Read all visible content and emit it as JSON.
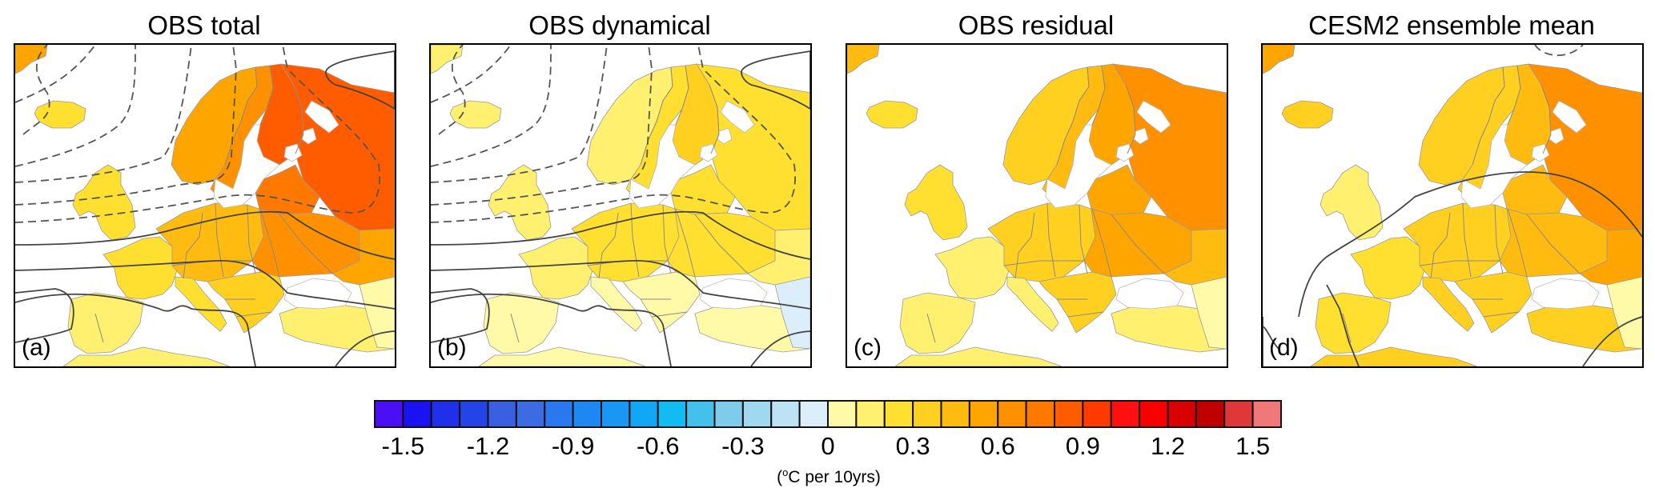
{
  "chart_data": {
    "type": "heatmap",
    "title": "",
    "description": "Four map panels of Europe showing temperature trends with overlaid contour lines (solid = positive, dashed = negative)",
    "panels": [
      {
        "id": "a",
        "title": "OBS total",
        "label": "(a)",
        "region_values": {
          "iceland": 0.2,
          "scandinavia_west": 0.5,
          "scandinavia_east": 0.6,
          "finland": 0.8,
          "russia_northwest": 0.8,
          "baltic_states": 0.7,
          "british_isles": 0.2,
          "france": 0.2,
          "iberia": 0.1,
          "central_europe": 0.4,
          "eastern_europe": 0.6,
          "italy": 0.2,
          "balkans": 0.3,
          "turkey": 0.1,
          "north_africa": 0.1,
          "russia_south": 0.5,
          "greenland_tip": 0.5
        },
        "contours": "dashed (negative) over North Atlantic/Scandinavia, solid (positive) over central/southern Europe"
      },
      {
        "id": "b",
        "title": "OBS dynamical",
        "label": "(b)",
        "region_values": {
          "iceland": 0.1,
          "scandinavia_west": 0.1,
          "scandinavia_east": 0.2,
          "finland": 0.3,
          "russia_northwest": 0.2,
          "baltic_states": 0.2,
          "british_isles": 0.1,
          "france": 0.1,
          "iberia": 0.05,
          "central_europe": 0.2,
          "eastern_europe": 0.2,
          "italy": 0.05,
          "balkans": 0.05,
          "turkey": 0.05,
          "north_africa": 0.05,
          "russia_south": 0.1,
          "caucasus": -0.1,
          "greenland_tip": 0.1
        },
        "contours": "same contour field as (a)"
      },
      {
        "id": "c",
        "title": "OBS residual",
        "label": "(c)",
        "region_values": {
          "iceland": 0.2,
          "scandinavia_west": 0.3,
          "scandinavia_east": 0.4,
          "finland": 0.5,
          "russia_northwest": 0.6,
          "baltic_states": 0.5,
          "british_isles": 0.2,
          "france": 0.15,
          "iberia": 0.15,
          "central_europe": 0.3,
          "eastern_europe": 0.5,
          "italy": 0.15,
          "balkans": 0.3,
          "turkey": 0.1,
          "north_africa": 0.15,
          "russia_south": 0.4,
          "greenland_tip": 0.4
        },
        "contours": "none"
      },
      {
        "id": "d",
        "title": "CESM2 ensemble mean",
        "label": "(d)",
        "region_values": {
          "iceland": 0.35,
          "scandinavia_west": 0.3,
          "scandinavia_east": 0.35,
          "finland": 0.45,
          "russia_northwest": 0.6,
          "baltic_states": 0.45,
          "british_isles": 0.15,
          "france": 0.25,
          "iberia": 0.2,
          "central_europe": 0.3,
          "eastern_europe": 0.45,
          "italy": 0.3,
          "balkans": 0.3,
          "turkey": 0.3,
          "north_africa": 0.3,
          "russia_south": 0.5,
          "greenland_tip": 0.5
        },
        "contours": "single solid contour arcing over western/central Europe"
      }
    ],
    "colorbar": {
      "levels": [
        -1.5,
        -1.4,
        -1.3,
        -1.2,
        -1.1,
        -1.0,
        -0.9,
        -0.8,
        -0.7,
        -0.6,
        -0.5,
        -0.4,
        -0.3,
        -0.2,
        -0.1,
        0,
        0.1,
        0.2,
        0.3,
        0.4,
        0.5,
        0.6,
        0.7,
        0.8,
        0.9,
        1.0,
        1.1,
        1.2,
        1.3,
        1.4,
        1.5
      ],
      "colors": [
        "#4b0ff5",
        "#1a12f0",
        "#2030ea",
        "#2444e8",
        "#3a5fe2",
        "#3d6be4",
        "#2a78f0",
        "#1e88f2",
        "#1a96f4",
        "#10a8f6",
        "#12bcf2",
        "#44c0ec",
        "#7ecbea",
        "#a0d8f0",
        "#bde2f4",
        "#dceefa",
        "#fffaa8",
        "#fff070",
        "#ffe030",
        "#ffd020",
        "#ffbb10",
        "#ffa500",
        "#ff9000",
        "#ff7800",
        "#ff5c00",
        "#ff3a00",
        "#ff1010",
        "#f80000",
        "#d80000",
        "#c00000",
        "#e03838",
        "#f07878"
      ],
      "tick_labels": [
        "-1.5",
        "-1.2",
        "-0.9",
        "-0.6",
        "-0.3",
        "0",
        "0.3",
        "0.6",
        "0.9",
        "1.2",
        "1.5"
      ],
      "units_prefix": "(",
      "units_degree": "o",
      "units_suffix": "C per 10yrs)"
    }
  }
}
